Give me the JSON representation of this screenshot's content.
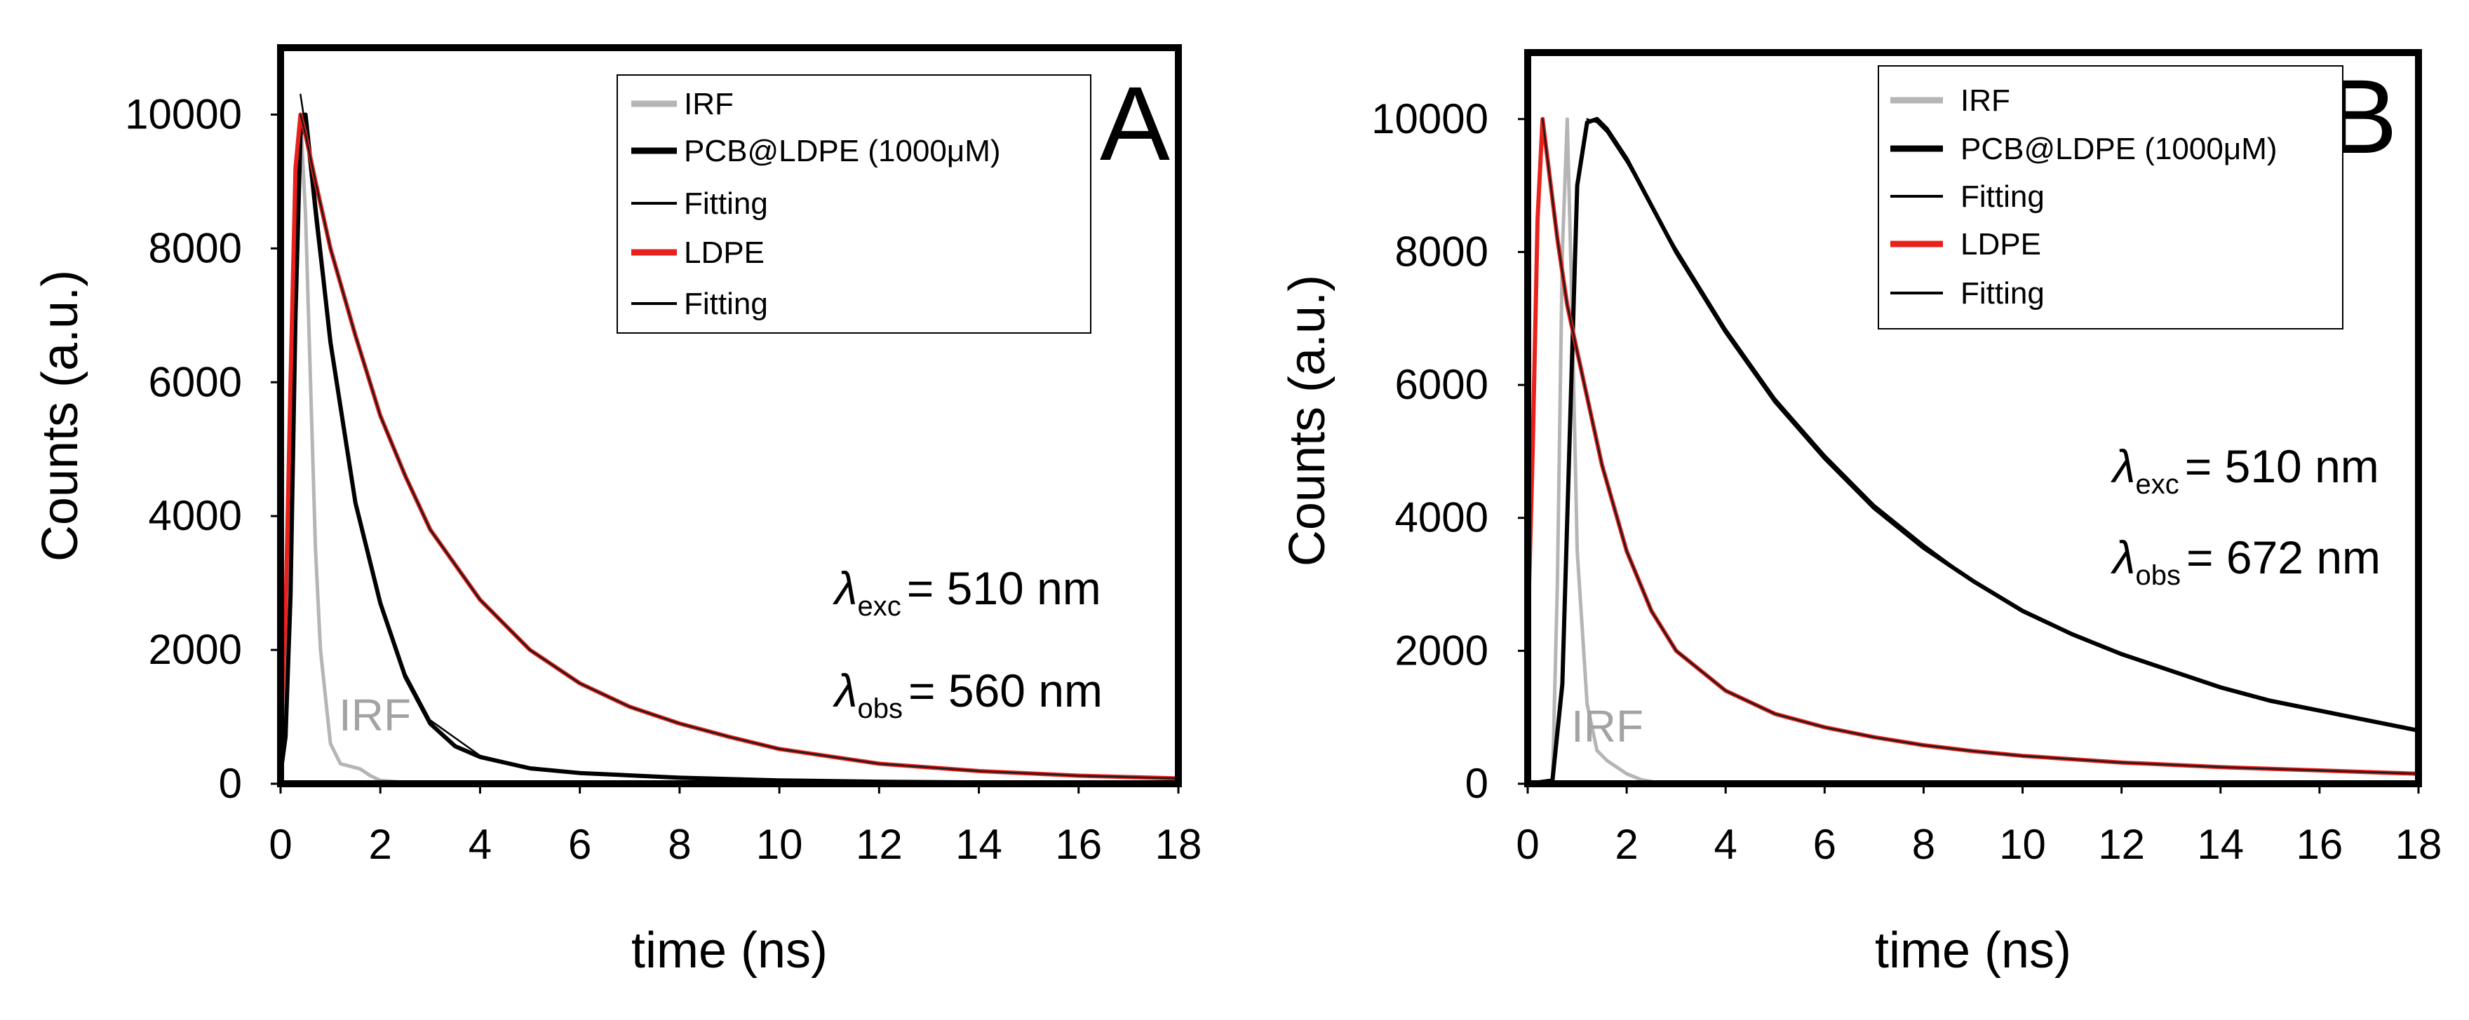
{
  "chart_data": [
    {
      "type": "line",
      "panel": "A",
      "xlabel": "time (ns)",
      "ylabel": "Counts (a.u.)",
      "xlim": [
        0,
        18
      ],
      "ylim": [
        0,
        11000
      ],
      "xticks": [
        "0",
        "2",
        "4",
        "6",
        "8",
        "10",
        "12",
        "14",
        "16",
        "18"
      ],
      "yticks": [
        "0",
        "2000",
        "4000",
        "6000",
        "8000",
        "10000"
      ],
      "legend_position": "top-right",
      "legend": [
        "IRF",
        "PCB@LDPE (1000μM)",
        "Fitting",
        "LDPE",
        "Fitting"
      ],
      "annotations": {
        "exc": {
          "symbol": "λ",
          "sub": "exc",
          "text": "= 510 nm"
        },
        "obs": {
          "symbol": "λ",
          "sub": "obs",
          "text": "= 560 nm"
        },
        "irf": "IRF"
      },
      "series": [
        {
          "name": "IRF",
          "color": "#b5b5b5",
          "x": [
            0,
            0.15,
            0.3,
            0.4,
            0.5,
            0.6,
            0.7,
            0.8,
            1.0,
            1.2,
            1.4,
            1.6,
            1.8,
            2.0,
            2.5,
            3,
            18
          ],
          "y": [
            0,
            2500,
            7500,
            10000,
            8500,
            6000,
            3500,
            2000,
            600,
            300,
            260,
            220,
            120,
            50,
            20,
            10,
            0
          ]
        },
        {
          "name": "PCB@LDPE (1000μM)",
          "color": "#000000",
          "x": [
            0,
            0.1,
            0.2,
            0.3,
            0.4,
            0.5,
            0.7,
            1.0,
            1.5,
            2.0,
            2.5,
            3.0,
            3.5,
            4.0,
            5.0,
            6.0,
            8.0,
            10.0,
            12.0,
            14.0,
            18.0
          ],
          "y": [
            150,
            700,
            2800,
            7000,
            9700,
            10000,
            8600,
            6600,
            4200,
            2700,
            1600,
            900,
            560,
            400,
            230,
            160,
            90,
            50,
            30,
            20,
            10
          ]
        },
        {
          "name": "Fitting",
          "color": "#000000",
          "x": [
            0.4,
            0.5,
            0.7,
            1.0,
            1.5,
            2.0,
            2.5,
            3.0,
            4.0,
            5.0,
            6.0,
            8.0,
            10.0,
            14.0,
            18.0
          ],
          "y": [
            10300,
            9800,
            8400,
            6500,
            4200,
            2700,
            1650,
            950,
            420,
            240,
            160,
            90,
            50,
            20,
            10
          ]
        },
        {
          "name": "LDPE",
          "color": "#e8211c",
          "x": [
            0,
            0.1,
            0.2,
            0.3,
            0.4,
            0.5,
            0.7,
            1.0,
            1.5,
            2.0,
            2.5,
            3.0,
            4.0,
            5.0,
            6.0,
            7.0,
            8.0,
            9.0,
            10.0,
            12.0,
            14.0,
            16.0,
            18.0
          ],
          "y": [
            700,
            2500,
            6000,
            9200,
            10000,
            9700,
            9000,
            8000,
            6700,
            5500,
            4600,
            3800,
            2750,
            2000,
            1500,
            1150,
            900,
            700,
            520,
            300,
            190,
            120,
            80
          ]
        },
        {
          "name": "Fitting",
          "color": "#1a1a1a",
          "x": [
            0.4,
            0.5,
            0.7,
            1.0,
            1.5,
            2.0,
            2.5,
            3.0,
            4.0,
            5.0,
            6.0,
            7.0,
            8.0,
            9.0,
            10.0,
            12.0,
            14.0,
            16.0,
            18.0
          ],
          "y": [
            10000,
            9700,
            9000,
            8000,
            6700,
            5500,
            4600,
            3800,
            2750,
            2000,
            1500,
            1150,
            900,
            700,
            520,
            300,
            190,
            120,
            80
          ]
        }
      ]
    },
    {
      "type": "line",
      "panel": "B",
      "xlabel": "time (ns)",
      "ylabel": "Counts (a.u.)",
      "xlim": [
        0,
        18
      ],
      "ylim": [
        0,
        11000
      ],
      "xticks": [
        "0",
        "2",
        "4",
        "6",
        "8",
        "10",
        "12",
        "14",
        "16",
        "18"
      ],
      "yticks": [
        "0",
        "2000",
        "4000",
        "6000",
        "8000",
        "10000"
      ],
      "legend_position": "top-right",
      "legend": [
        "IRF",
        "PCB@LDPE (1000μM)",
        "Fitting",
        "LDPE",
        "Fitting"
      ],
      "annotations": {
        "exc": {
          "symbol": "λ",
          "sub": "exc",
          "text": "= 510 nm"
        },
        "obs": {
          "symbol": "λ",
          "sub": "obs",
          "text": "= 672 nm"
        },
        "irf": "IRF"
      },
      "series": [
        {
          "name": "IRF",
          "color": "#b5b5b5",
          "x": [
            0,
            0.5,
            0.6,
            0.7,
            0.8,
            0.9,
            1.0,
            1.2,
            1.4,
            1.6,
            1.8,
            2.0,
            2.3,
            2.6,
            18
          ],
          "y": [
            0,
            0,
            3000,
            8000,
            10000,
            7000,
            3500,
            1200,
            500,
            350,
            250,
            150,
            60,
            20,
            0
          ]
        },
        {
          "name": "PCB@LDPE (1000μM)",
          "color": "#000000",
          "x": [
            0,
            0.5,
            0.7,
            0.9,
            1.0,
            1.2,
            1.4,
            1.6,
            2.0,
            2.5,
            3.0,
            4.0,
            5.0,
            6.0,
            7.0,
            8.0,
            9.0,
            10.0,
            11.0,
            12.0,
            13.0,
            14.0,
            15.0,
            16.0,
            17.0,
            18.0
          ],
          "y": [
            0,
            50,
            1500,
            6500,
            9000,
            9950,
            10000,
            9850,
            9400,
            8700,
            8000,
            6800,
            5750,
            4900,
            4150,
            3550,
            3050,
            2600,
            2250,
            1950,
            1700,
            1450,
            1250,
            1100,
            950,
            800
          ]
        },
        {
          "name": "Fitting",
          "color": "#000000",
          "x": [
            1.2,
            1.4,
            1.6,
            2.0,
            2.5,
            3.0,
            4.0,
            5.0,
            6.0,
            7.0,
            8.0,
            9.0,
            10.0,
            11.0,
            12.0,
            13.0,
            14.0,
            15.0,
            16.0,
            17.0,
            18.0
          ],
          "y": [
            10000,
            9950,
            9800,
            9350,
            8700,
            8050,
            6850,
            5800,
            4950,
            4200,
            3600,
            3050,
            2600,
            2250,
            1950,
            1700,
            1450,
            1250,
            1100,
            950,
            800
          ]
        },
        {
          "name": "LDPE",
          "color": "#e8211c",
          "x": [
            0,
            0.1,
            0.2,
            0.3,
            0.4,
            0.6,
            0.8,
            1.0,
            1.5,
            2.0,
            2.5,
            3.0,
            4.0,
            5.0,
            6.0,
            7.0,
            8.0,
            9.0,
            10.0,
            12.0,
            14.0,
            16.0,
            18.0
          ],
          "y": [
            2200,
            5000,
            8500,
            10000,
            9400,
            8200,
            7200,
            6500,
            4800,
            3500,
            2600,
            2000,
            1400,
            1050,
            850,
            700,
            580,
            490,
            420,
            320,
            250,
            200,
            150
          ]
        },
        {
          "name": "Fitting",
          "color": "#1a1a1a",
          "x": [
            0.3,
            0.4,
            0.6,
            0.8,
            1.0,
            1.5,
            2.0,
            2.5,
            3.0,
            4.0,
            5.0,
            6.0,
            7.0,
            8.0,
            9.0,
            10.0,
            12.0,
            14.0,
            16.0,
            18.0
          ],
          "y": [
            10000,
            9400,
            8200,
            7200,
            6500,
            4800,
            3500,
            2600,
            2000,
            1400,
            1050,
            850,
            700,
            580,
            490,
            420,
            320,
            250,
            200,
            150
          ]
        }
      ]
    }
  ]
}
